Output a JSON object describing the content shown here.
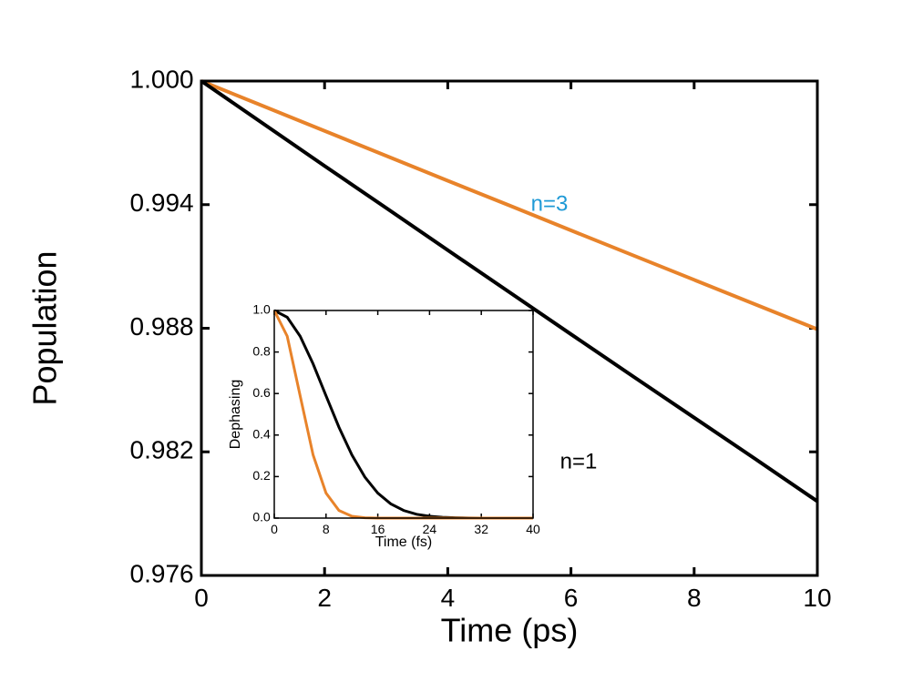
{
  "chart_data": [
    {
      "type": "line",
      "xlabel": "Time (ps)",
      "ylabel": "Population",
      "x": [
        0,
        1,
        2,
        3,
        4,
        5,
        6,
        7,
        8,
        9,
        10
      ],
      "series": [
        {
          "name": "n=3",
          "color": "#e8832a",
          "label_color": "#1f9ad6",
          "values": [
            1.0,
            0.99879,
            0.99758,
            0.99637,
            0.99516,
            0.99396,
            0.99275,
            0.99155,
            0.99035,
            0.98915,
            0.98795
          ]
        },
        {
          "name": "n=1",
          "color": "#000000",
          "label_color": "#000000",
          "values": [
            1.0,
            0.99794,
            0.99588,
            0.99384,
            0.99179,
            0.98975,
            0.98771,
            0.98568,
            0.98366,
            0.98164,
            0.9796
          ]
        }
      ],
      "xlim": [
        0,
        10
      ],
      "ylim": [
        0.976,
        1.0
      ],
      "xticks": [
        0,
        2,
        4,
        6,
        8,
        10
      ],
      "yticks": [
        0.976,
        0.982,
        0.988,
        0.994,
        {
          "value": 1.0,
          "label": "1.000"
        }
      ]
    },
    {
      "type": "line",
      "xlabel": "Time (fs)",
      "ylabel": "Dephasing",
      "x": [
        0,
        2,
        4,
        6,
        8,
        10,
        12,
        14,
        16,
        18,
        20,
        22,
        24,
        26,
        28,
        30,
        32,
        34,
        36,
        38,
        40
      ],
      "series": [
        {
          "color": "#000000",
          "values": [
            1.0,
            0.9675,
            0.8761,
            0.7427,
            0.5893,
            0.4376,
            0.3042,
            0.1979,
            0.1205,
            0.0687,
            0.0367,
            0.0183,
            0.0086,
            0.0037,
            0.0015,
            0.0006,
            0.0002,
            0.0001,
            0.0,
            0.0,
            0.0
          ]
        },
        {
          "color": "#e8832a",
          "values": [
            1.0,
            0.8761,
            0.5893,
            0.3042,
            0.1205,
            0.0367,
            0.0086,
            0.0015,
            0.0002,
            0.0,
            0.0,
            0.0,
            0.0,
            0.0,
            0.0,
            0.0,
            0.0,
            0.0,
            0.0,
            0.0,
            0.0
          ]
        }
      ],
      "xlim": [
        0,
        40
      ],
      "ylim": [
        0,
        1
      ],
      "xticks": [
        0,
        8,
        16,
        24,
        32,
        40
      ],
      "yticks": [
        {
          "value": 0,
          "label": "0.0"
        },
        0.2,
        0.4,
        0.6,
        0.8,
        {
          "value": 1,
          "label": "1.0"
        }
      ]
    }
  ]
}
